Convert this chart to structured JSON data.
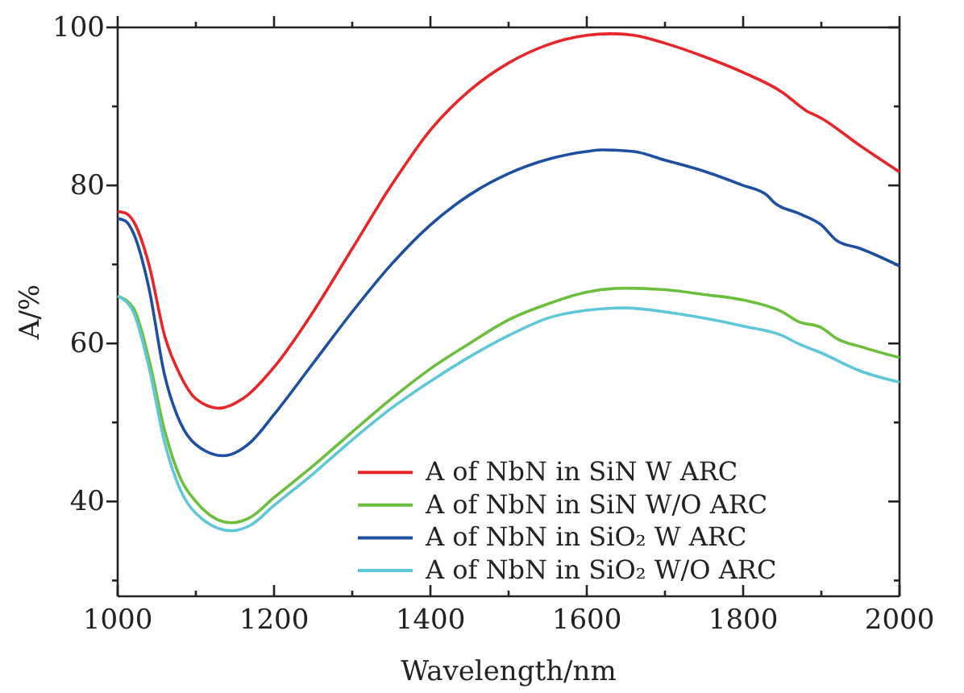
{
  "chart_data": {
    "type": "line",
    "xlabel": "Wavelength/nm",
    "ylabel": "A/%",
    "xlim": [
      1000,
      2000
    ],
    "ylim": [
      28,
      100
    ],
    "xticks": [
      1000,
      {
        "value": 1100,
        "label": null
      },
      1200,
      {
        "value": 1300,
        "label": null
      },
      1400,
      {
        "value": 1500,
        "label": null
      },
      1600,
      {
        "value": 1700,
        "label": null
      },
      1800,
      {
        "value": 1900,
        "label": null
      },
      2000
    ],
    "yticks": [
      {
        "value": 30,
        "label": null
      },
      40,
      {
        "value": 50,
        "label": null
      },
      60,
      {
        "value": 70,
        "label": null
      },
      80,
      {
        "value": 90,
        "label": null
      },
      100
    ],
    "grid": false,
    "legend": "bottom right",
    "marker": "none",
    "line_style": "solid",
    "series": [
      {
        "name": "A of NbN in SiN W ARC",
        "color": "#e8262a",
        "x": [
          1000,
          1010,
          1020,
          1040,
          1060,
          1080,
          1100,
          1130,
          1160,
          1200,
          1250,
          1300,
          1350,
          1400,
          1450,
          1500,
          1550,
          1600,
          1630,
          1660,
          1700,
          1750,
          1800,
          1850,
          1880,
          1900,
          1950,
          2000
        ],
        "values": [
          76.7,
          76.5,
          75.5,
          70,
          61,
          56,
          53,
          51.8,
          53,
          57,
          64,
          72,
          80,
          87,
          92,
          95.5,
          97.8,
          99,
          99.2,
          99,
          98,
          96.3,
          94.3,
          91.8,
          89.5,
          88.5,
          85,
          81.7
        ]
      },
      {
        "name": "A of NbN in SiN W/O ARC",
        "color": "#6cbf3c",
        "x": [
          1000,
          1020,
          1040,
          1060,
          1080,
          1100,
          1145,
          1170,
          1200,
          1250,
          1300,
          1350,
          1400,
          1450,
          1500,
          1550,
          1600,
          1650,
          1700,
          1750,
          1800,
          1850,
          1870,
          1900,
          1920,
          1950,
          2000
        ],
        "values": [
          66,
          64.5,
          58,
          49,
          43,
          40,
          37.3,
          38,
          40.5,
          44.5,
          48.8,
          53,
          56.8,
          60,
          63,
          65,
          66.5,
          67,
          66.8,
          66.2,
          65.5,
          64,
          62.8,
          62,
          60.6,
          59.6,
          58.2
        ]
      },
      {
        "name": "A of NbN in SiO₂ W ARC",
        "color": "#1f4fa0",
        "x": [
          1000,
          1010,
          1020,
          1040,
          1060,
          1080,
          1100,
          1135,
          1170,
          1200,
          1250,
          1300,
          1350,
          1400,
          1450,
          1500,
          1550,
          1600,
          1620,
          1660,
          1700,
          1750,
          1800,
          1830,
          1840,
          1870,
          1900,
          1920,
          1950,
          2000
        ],
        "values": [
          75.8,
          75.5,
          74,
          67,
          56,
          50,
          47.2,
          45.8,
          47.5,
          51,
          57.5,
          64,
          70,
          75,
          78.8,
          81.5,
          83.3,
          84.3,
          84.5,
          84.3,
          83.2,
          81.8,
          80,
          78.8,
          77.8,
          76.5,
          75,
          73,
          72,
          69.8
        ]
      },
      {
        "name": "A of NbN in SiO₂ W/O ARC",
        "color": "#5ec8d8",
        "x": [
          1000,
          1020,
          1040,
          1060,
          1080,
          1100,
          1145,
          1170,
          1200,
          1250,
          1300,
          1350,
          1400,
          1450,
          1500,
          1550,
          1600,
          1650,
          1700,
          1750,
          1800,
          1850,
          1870,
          1900,
          1950,
          2000
        ],
        "values": [
          66,
          64,
          57,
          47.5,
          41.5,
          38.5,
          36.3,
          37,
          39.5,
          43.5,
          47.8,
          51.8,
          55.2,
          58.3,
          61,
          63.2,
          64.2,
          64.5,
          64,
          63.2,
          62.2,
          61,
          60,
          58.8,
          56.5,
          55.1
        ]
      }
    ]
  }
}
